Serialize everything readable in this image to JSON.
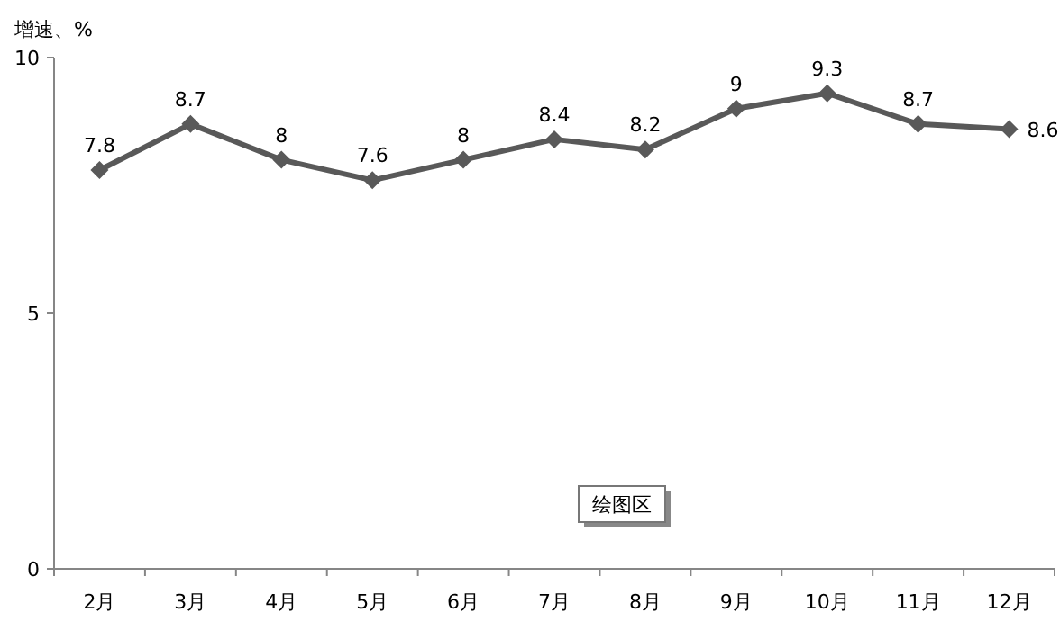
{
  "chart_data": {
    "type": "line",
    "ylabel": "增速、%",
    "categories": [
      "2月",
      "3月",
      "4月",
      "5月",
      "6月",
      "7月",
      "8月",
      "9月",
      "10月",
      "11月",
      "12月"
    ],
    "series": [
      {
        "color": "#595959",
        "values": [
          7.8,
          8.7,
          8,
          7.6,
          8,
          8.4,
          8.2,
          9,
          9.3,
          8.7,
          8.6
        ]
      }
    ],
    "ylim": [
      0,
      10
    ],
    "yticks": [
      0,
      5,
      10
    ],
    "marker": "diamond",
    "line_style": "solid",
    "data_labels": true,
    "grid": false,
    "annotations": [
      "绘图区"
    ]
  }
}
